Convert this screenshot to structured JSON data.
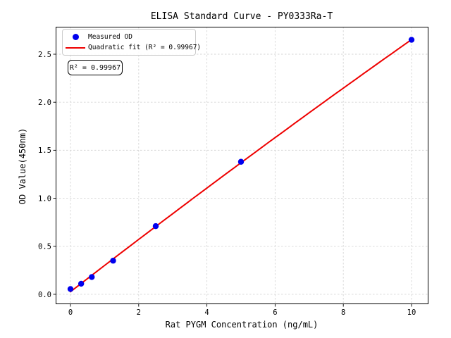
{
  "colors": {
    "point": "#0000ee",
    "fit_line": "#ee0000",
    "grid": "#d6d6d6",
    "spine": "#000000",
    "text": "#000000",
    "legend_border": "#cccccc",
    "background": "#ffffff"
  },
  "chart_data": {
    "type": "scatter",
    "title": "ELISA Standard Curve - PY0333Ra-T",
    "xlabel": "Rat PYGM Concentration (ng/mL)",
    "ylabel": "OD Value(450nm)",
    "xlim": [
      -0.434,
      10.496
    ],
    "ylim": [
      -0.103,
      2.786
    ],
    "x_ticks": [
      0,
      2,
      4,
      6,
      8,
      10
    ],
    "y_ticks": [
      0.0,
      0.5,
      1.0,
      1.5,
      2.0,
      2.5
    ],
    "grid": true,
    "grid_style": "dashed",
    "legend_position": "upper left",
    "series": [
      {
        "name": "Measured OD",
        "type": "scatter",
        "color": "#0000ee",
        "x": [
          0,
          0.313,
          0.625,
          1.25,
          2.5,
          5,
          10
        ],
        "y": [
          0.055,
          0.11,
          0.18,
          0.35,
          0.71,
          1.38,
          2.65
        ]
      },
      {
        "name": "Quadratic fit (R² = 0.99967)",
        "type": "line",
        "fit": "quadratic",
        "color": "#ee0000",
        "x_range": [
          0,
          10
        ]
      }
    ],
    "annotation": "R² = 0.99967",
    "r_squared": 0.99967
  }
}
